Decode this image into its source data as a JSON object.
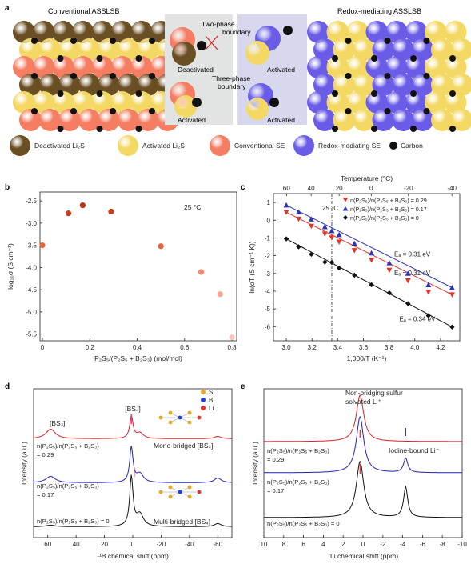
{
  "panel_a": {
    "letter": "a",
    "left_title": "Conventional ASSLSB",
    "right_title": "Redox-mediating ASSLSB",
    "two_phase_1": "Two-phase",
    "two_phase_2": "boundary",
    "three_phase_1": "Three-phase",
    "three_phase_2": "boundary",
    "deactivated": "Deactivated",
    "activated_1": "Activated",
    "activated_2": "Activated",
    "activated_3": "Activated",
    "legend": [
      {
        "label": "Deactivated Li₂S",
        "color": "#6b4f24"
      },
      {
        "label": "Activated Li₂S",
        "color": "#f3d863"
      },
      {
        "label": "Conventional SE",
        "color": "#f47d62"
      },
      {
        "label": "Redox-mediating SE",
        "color": "#6a5ce6"
      },
      {
        "label": "Carbon",
        "color": "#111111"
      }
    ],
    "colors": {
      "brown": "#6b4f24",
      "yellow": "#f3d863",
      "salmon": "#f47d62",
      "blue": "#6a5ce6",
      "carbon": "#111111",
      "box_grey": "#e2e4e4",
      "box_blue": "#d7d8ee"
    }
  },
  "chart_data": [
    {
      "panel": "b",
      "type": "scatter",
      "temperature_note": "25 °C",
      "xlabel": "P₂S₅/(P₂S₅ + B₂S₃) (mol/mol)",
      "ylabel": "log₁₀σ (S cm⁻¹)",
      "xlim": [
        -0.01,
        0.82
      ],
      "ylim": [
        -5.65,
        -2.3
      ],
      "xticks": [
        "0",
        "0.2",
        "0.4",
        "0.6",
        "0.8"
      ],
      "xtick_values": [
        0,
        0.2,
        0.4,
        0.6,
        0.8
      ],
      "yticks": [
        "-2.5",
        "-3.0",
        "-3.5",
        "-4.0",
        "-4.5",
        "-5.0",
        "-5.5"
      ],
      "ytick_values": [
        -2.5,
        -3.0,
        -3.5,
        -4.0,
        -4.5,
        -5.0,
        -5.5
      ],
      "points": [
        {
          "x": 0.0,
          "y": -3.5,
          "color": "#e8643a"
        },
        {
          "x": 0.11,
          "y": -2.78,
          "color": "#c6401f"
        },
        {
          "x": 0.17,
          "y": -2.6,
          "color": "#b8321b"
        },
        {
          "x": 0.29,
          "y": -2.74,
          "color": "#c6401f"
        },
        {
          "x": 0.5,
          "y": -3.52,
          "color": "#ea5f3a"
        },
        {
          "x": 0.67,
          "y": -4.1,
          "color": "#f48a6e"
        },
        {
          "x": 0.75,
          "y": -4.6,
          "color": "#f7a591"
        },
        {
          "x": 0.8,
          "y": -5.57,
          "color": "#f9c6b9"
        }
      ]
    },
    {
      "panel": "c",
      "type": "line",
      "xlabel": "1,000/T (K⁻¹)",
      "ylabel": "ln(σT (S cm⁻¹ K))",
      "top_xlabel": "Temperature (°C)",
      "xlim": [
        2.9,
        4.35
      ],
      "ylim": [
        -6.8,
        1.5
      ],
      "xticks": [
        "3.0",
        "3.2",
        "3.4",
        "3.6",
        "3.8",
        "4.0",
        "4.2"
      ],
      "xtick_values": [
        3.0,
        3.2,
        3.4,
        3.6,
        3.8,
        4.0,
        4.2
      ],
      "yticks": [
        "1",
        "0",
        "-1",
        "-2",
        "-3",
        "-4",
        "-5",
        "-6"
      ],
      "ytick_values": [
        1,
        0,
        -1,
        -2,
        -3,
        -4,
        -5,
        -6
      ],
      "top_ticks": [
        "60",
        "40",
        "20",
        "0",
        "-20",
        "-40"
      ],
      "top_tick_values": [
        60,
        40,
        20,
        0,
        -20,
        -40
      ],
      "marker_line_x": 3.354,
      "marker_line_label": "25 °C",
      "series": [
        {
          "name_prefix": "n(P₂S₅)/n(P₂S₅ + B₂S₃) = 0.29",
          "color": "#e0342b",
          "marker": "tri-down",
          "x": [
            3.0,
            3.096,
            3.195,
            3.3,
            3.354,
            3.411,
            3.53,
            3.663,
            3.802,
            3.947,
            4.106,
            4.29
          ],
          "y": [
            0.45,
            0.06,
            -0.34,
            -0.77,
            -0.99,
            -1.23,
            -1.71,
            -2.25,
            -2.82,
            -3.41,
            -4.05,
            -4.2
          ],
          "ea": "Eₐ = 0.31 eV"
        },
        {
          "name_prefix": "n(P₂S₅)/n(P₂S₅ + B₂S₃) = 0.17",
          "color": "#2a34b8",
          "marker": "tri-up",
          "x": [
            3.0,
            3.096,
            3.195,
            3.3,
            3.354,
            3.411,
            3.53,
            3.663,
            3.802,
            3.947,
            4.106,
            4.29
          ],
          "y": [
            0.85,
            0.46,
            0.06,
            -0.37,
            -0.59,
            -0.82,
            -1.31,
            -1.85,
            -2.41,
            -3.0,
            -3.64,
            -3.8
          ],
          "ea": "Eₐ = 0.31 eV"
        },
        {
          "name_prefix": "n(P₂S₅)/n(P₂S₅ + B₂S₃) = 0",
          "color": "#111111",
          "marker": "diamond",
          "x": [
            3.0,
            3.096,
            3.195,
            3.3,
            3.354,
            3.411,
            3.53,
            3.663,
            3.802,
            3.947,
            4.106,
            4.29
          ],
          "y": [
            -1.05,
            -1.5,
            -1.92,
            -2.36,
            -2.38,
            -2.7,
            -3.1,
            -3.64,
            -4.1,
            -4.7,
            -5.38,
            -6.02
          ],
          "ea": "Eₐ = 0.34 eV"
        }
      ]
    },
    {
      "panel": "d",
      "type": "line",
      "xlabel": "¹¹B chemical shift (ppm)",
      "ylabel": "Intensity (a.u.)",
      "xlim": [
        70,
        -70
      ],
      "xticks": [
        "60",
        "40",
        "20",
        "0",
        "-20",
        "-40",
        "-60"
      ],
      "xtick_values": [
        60,
        40,
        20,
        0,
        -20,
        -40,
        -60
      ],
      "labels": {
        "bs3": "[BS₃]",
        "bs4": "[BS₄]",
        "mono": "Mono-bridged [BS₄]",
        "multi": "Multi-bridged [BS₄]",
        "r1": "n(P₂S₅)/n(P₂S₅ + B₂S₃)",
        "v1": "= 0.29",
        "r2": "n(P₂S₅)/n(P₂S₅ + B₂S₃)",
        "v2": "= 0.17",
        "r3": "n(P₂S₅)/n(P₂S₅ + B₂S₃) = 0"
      },
      "atom_legend": [
        {
          "label": "S",
          "color": "#e6a722"
        },
        {
          "label": "B",
          "color": "#1f3fd9"
        },
        {
          "label": "Li",
          "color": "#e0342b"
        }
      ],
      "series": [
        {
          "name": "0.29",
          "color": "#d8232a"
        },
        {
          "name": "0.17",
          "color": "#1f22b5"
        },
        {
          "name": "0",
          "color": "#111111"
        }
      ]
    },
    {
      "panel": "e",
      "type": "line",
      "xlabel": "⁷Li chemical shift (ppm)",
      "ylabel": "Intensity (a.u.)",
      "xlim": [
        10,
        -10
      ],
      "xticks": [
        "10",
        "8",
        "6",
        "4",
        "2",
        "0",
        "-2",
        "-4",
        "-6",
        "-8",
        "-10"
      ],
      "xtick_values": [
        10,
        8,
        6,
        4,
        2,
        0,
        -2,
        -4,
        -6,
        -8,
        -10
      ],
      "labels": {
        "nbs1": "Non-bridging sulfur",
        "nbs2": "solvated Li⁺",
        "iod": "Iodine-bound Li⁺",
        "r1": "n(P₂S₅)/n(P₂S₅ + B₂S₃)",
        "v1": "= 0.29",
        "r2": "n(P₂S₅)/n(P₂S₅ + B₂S₃)",
        "v2": "= 0.17",
        "r3": "n(P₂S₅)/n(P₂S₅ + B₂S₃) = 0"
      },
      "series": [
        {
          "name": "0.29",
          "color": "#d8232a"
        },
        {
          "name": "0.17",
          "color": "#1f22b5"
        },
        {
          "name": "0",
          "color": "#111111"
        }
      ]
    }
  ]
}
